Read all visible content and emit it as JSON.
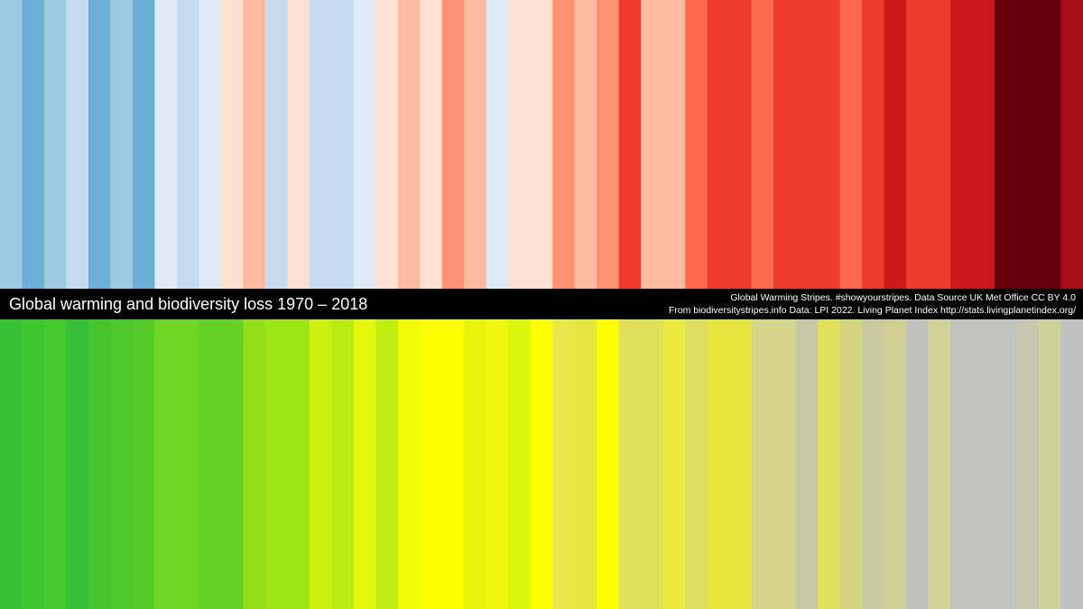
{
  "title": "Global warming and biodiversity loss 1970 – 2018",
  "credits": [
    "Global Warming Stripes. #showyourstripes. Data Source UK Met Office CC BY 4.0",
    "From biodiversitystripes.info Data: LPI 2022. Living Planet Index http://stats.livingplanetindex.org/"
  ],
  "warming_stripes": [
    "#9ecae1",
    "#6baed6",
    "#9ecae1",
    "#c6dbef",
    "#6baed6",
    "#9ecae1",
    "#6baed6",
    "#deebf7",
    "#c6dbef",
    "#deebf7",
    "#fee0d2",
    "#fcbba1",
    "#c6dbef",
    "#fee0d2",
    "#c6dbef",
    "#c6dbef",
    "#deebf7",
    "#fee0d2",
    "#fcbba1",
    "#fee0d2",
    "#fc9272",
    "#fcbba1",
    "#deebf7",
    "#fee0d2",
    "#fee0d2",
    "#fc9272",
    "#fcbba1",
    "#fc9272",
    "#ef3b2c",
    "#fcbba1",
    "#fcbba1",
    "#fb6a4a",
    "#ef3b2c",
    "#ef3b2c",
    "#fb6a4a",
    "#ef3b2c",
    "#ef3b2c",
    "#ef3b2c",
    "#fb6a4a",
    "#ef3b2c",
    "#cb181d",
    "#ef3b2c",
    "#ef3b2c",
    "#cb181d",
    "#cb181d",
    "#67000d",
    "#67000d",
    "#67000d",
    "#a50f15"
  ],
  "biodiversity_stripes": [
    "#36c235",
    "#3ec52f",
    "#46c82e",
    "#36c037",
    "#45c42f",
    "#4ec92c",
    "#55cb2a",
    "#6fd624",
    "#6fd624",
    "#62d025",
    "#62d025",
    "#93e01a",
    "#9ee516",
    "#9ee516",
    "#cdf00f",
    "#b8ec12",
    "#e4f80a",
    "#c0ee10",
    "#f0fb06",
    "#ffff00",
    "#ffff00",
    "#e8f40b",
    "#f2f50c",
    "#dcf70c",
    "#ffff00",
    "#e8e84a",
    "#e6e640",
    "#ffff00",
    "#e0e05a",
    "#e0e05a",
    "#e9e93e",
    "#dede60",
    "#e6e63f",
    "#e6e63f",
    "#d4d48a",
    "#d4d48a",
    "#c8c8a6",
    "#e0e05c",
    "#d4d480",
    "#cacaa0",
    "#d0d090",
    "#c0c0bc",
    "#d2d296",
    "#c2c2c0",
    "#c2c2c0",
    "#c2c2c0",
    "#c8c8b0",
    "#d0d09a",
    "#c0c0c0"
  ]
}
